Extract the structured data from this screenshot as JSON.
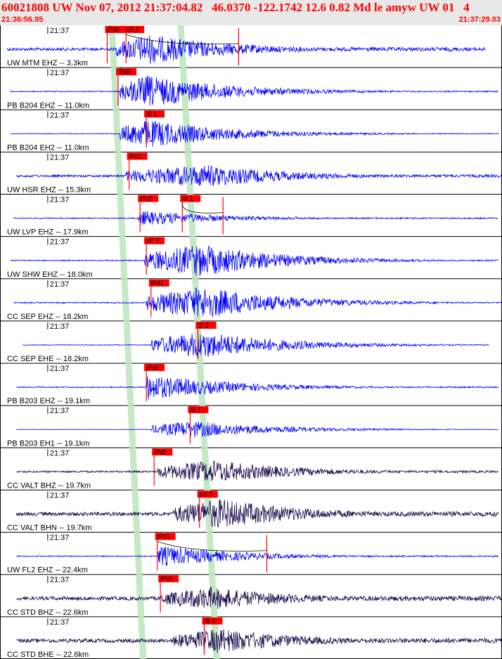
{
  "header": {
    "title": "60021808 UW Nov 07, 2012 21:37:04.82   46.0370 -122.1742 12.6 0.82 Md le amyw UW 01   4",
    "start_time": "21:36:56.95",
    "end_time": "21:37:29.03"
  },
  "colors": {
    "header_text": "#ff0000",
    "short_period": "#0000ff",
    "broadband": "#1a0a4a",
    "pick": "#ff0000",
    "predicted_band": "#bfe6bf"
  },
  "chart_data": {
    "type": "seismogram",
    "time_window": [
      "21:36:56.95",
      "21:37:29.03"
    ],
    "tick_label": "21:37",
    "predicted_p_band_times": [
      "21:37:03.9",
      "21:37:05.9"
    ],
    "predicted_s_band_times": [
      "21:37:08.3",
      "21:37:10.6"
    ],
    "traces": [
      {
        "label": "UW MTM EHZ -- 3.3km",
        "color": "#0000ff",
        "start": "21:36:57.4",
        "end": "21:37:28.0",
        "onset": "21:37:04.4",
        "peak": "21:37:06.4",
        "amp": 0.8,
        "bg": 0.08,
        "picks": [
          {
            "label": "iPd1",
            "time": "21:37:03.8"
          },
          {
            "label": "eS 2",
            "time": "21:37:05.0"
          }
        ],
        "late": "21:37:12.2"
      },
      {
        "label": "PB B204 EHZ -- 11.0km",
        "color": "#0000ff",
        "start": "21:36:57.6",
        "end": "21:37:28.8",
        "onset": "21:37:04.6",
        "peak": "21:37:06.4",
        "amp": 0.85,
        "bg": 0.03,
        "picks": [
          {
            "label": "iPd0",
            "time": "21:37:04.5"
          }
        ],
        "late": null
      },
      {
        "label": "PB B204 EH2 -- 11.0km",
        "color": "#0000ff",
        "start": "21:36:57.6",
        "end": "21:37:28.8",
        "onset": "21:37:04.6",
        "peak": "21:37:06.4",
        "amp": 0.75,
        "bg": 0.02,
        "picks": [
          {
            "label": "iS 1",
            "time": "21:37:06.3"
          }
        ],
        "late": null
      },
      {
        "label": "UW HSR EHZ -- 15.3km",
        "color": "#0000ff",
        "start": "21:36:58.0",
        "end": "21:37:29.0",
        "onset": "21:37:05.0",
        "peak": "21:37:10.2",
        "amp": 0.6,
        "bg": 0.06,
        "picks": [
          {
            "label": "iPd1",
            "time": "21:37:05.2"
          }
        ],
        "late": null
      },
      {
        "label": "UW LVP EHZ -- 17.9km",
        "color": "#0000ff",
        "start": "21:36:57.8",
        "end": "21:37:28.8",
        "onset": "21:37:05.8",
        "peak": "21:37:06.0",
        "amp": 0.4,
        "bg": 0.03,
        "picks": [
          {
            "label": "iPc0",
            "time": "21:37:05.9"
          },
          {
            "label": "iS 1",
            "time": "21:37:08.6"
          }
        ],
        "late": "21:37:11.2"
      },
      {
        "label": "UW SHW EHZ -- 18.0km",
        "color": "#0000ff",
        "start": "21:36:57.6",
        "end": "21:37:28.8",
        "onset": "21:37:06.2",
        "peak": "21:37:09.7",
        "amp": 0.85,
        "bg": 0.03,
        "picks": [
          {
            "label": "eP 2",
            "time": "21:37:06.3"
          }
        ],
        "late": null
      },
      {
        "label": "CC SEP EHZ -- 18.2km",
        "color": "#0000ff",
        "start": "21:36:57.8",
        "end": "21:37:29.0",
        "onset": "21:37:06.3",
        "peak": "21:37:10.0",
        "amp": 0.85,
        "bg": 0.03,
        "picks": [
          {
            "label": "iPd1",
            "time": "21:37:06.6"
          }
        ],
        "late": null
      },
      {
        "label": "CC SEP EHE -- 18.2km",
        "color": "#0000ff",
        "start": "21:36:58.4",
        "end": "21:37:28.2",
        "onset": "21:37:06.6",
        "peak": "21:37:10.0",
        "amp": 0.7,
        "bg": 0.02,
        "picks": [
          {
            "label": "iS 1",
            "time": "21:37:09.6"
          }
        ],
        "late": null
      },
      {
        "label": "PB B203 EHZ -- 19.1km",
        "color": "#0000ff",
        "start": "21:36:58.0",
        "end": "21:37:28.8",
        "onset": "21:37:06.3",
        "peak": "21:37:06.3",
        "amp": 0.7,
        "bg": 0.03,
        "picks": [
          {
            "label": "iPc0",
            "time": "21:37:06.3"
          }
        ],
        "late": null
      },
      {
        "label": "PB B203 EH1 -- 19.1km",
        "color": "#0000ff",
        "start": "21:36:58.0",
        "end": "21:37:28.8",
        "onset": "21:37:06.6",
        "peak": "21:37:09.2",
        "amp": 0.45,
        "bg": 0.01,
        "picks": [
          {
            "label": "iS 1",
            "time": "21:37:09.1"
          }
        ],
        "late": null
      },
      {
        "label": "CC VALT BHZ -- 19.7km",
        "color": "#1a0a4a",
        "start": "21:36:58.0",
        "end": "21:37:28.8",
        "onset": "21:37:07.0",
        "peak": "21:37:10.6",
        "amp": 0.6,
        "bg": 0.05,
        "picks": [
          {
            "label": "iPd1",
            "time": "21:37:06.8"
          }
        ],
        "late": null
      },
      {
        "label": "CC VALT BHN -- 19.7km",
        "color": "#1a0a4a",
        "start": "21:36:58.0",
        "end": "21:37:28.8",
        "onset": "21:37:08.0",
        "peak": "21:37:11.0",
        "amp": 0.8,
        "bg": 0.1,
        "picks": [
          {
            "label": "eS 2",
            "time": "21:37:09.7"
          }
        ],
        "late": null
      },
      {
        "label": "UW FL2 EHZ -- 22.4km",
        "color": "#0000ff",
        "start": "21:36:58.0",
        "end": "21:37:28.8",
        "onset": "21:37:07.0",
        "peak": "21:37:07.2",
        "amp": 0.55,
        "bg": 0.03,
        "picks": [
          {
            "label": "iPd1",
            "time": "21:37:07.0"
          }
        ],
        "late": "21:37:14.0"
      },
      {
        "label": "CC STD BHZ -- 22.6km",
        "color": "#1a0a4a",
        "start": "21:36:58.0",
        "end": "21:37:29.0",
        "onset": "21:37:07.2",
        "peak": "21:37:10.4",
        "amp": 0.6,
        "bg": 0.1,
        "picks": [
          {
            "label": "iPc0",
            "time": "21:37:07.2"
          }
        ],
        "late": null
      },
      {
        "label": "CC STD BHE -- 22.6km",
        "color": "#1a0a4a",
        "start": "21:36:58.0",
        "end": "21:37:29.0",
        "onset": "21:37:08.0",
        "peak": "21:37:11.0",
        "amp": 0.65,
        "bg": 0.1,
        "picks": [
          {
            "label": "iS 0",
            "time": "21:37:10.0"
          }
        ],
        "late": null
      }
    ]
  }
}
